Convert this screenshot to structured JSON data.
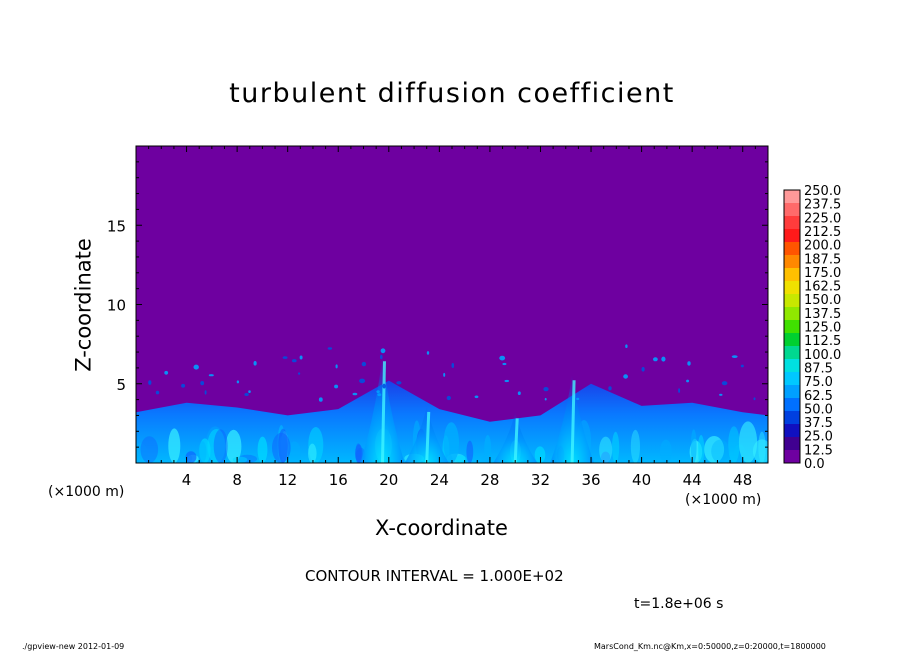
{
  "chart_data": {
    "type": "heatmap",
    "title": "turbulent diffusion coefficient",
    "xlabel": "X-coordinate",
    "ylabel": "Z-coordinate",
    "x_unit_label": "(×1000 m)",
    "x_unit_label_right": "(×1000 m)",
    "xlim": [
      0,
      50
    ],
    "ylim": [
      0,
      20
    ],
    "x_ticks": [
      4,
      8,
      12,
      16,
      20,
      24,
      28,
      32,
      36,
      40,
      44,
      48
    ],
    "y_ticks": [
      5,
      10,
      15
    ],
    "colorbar": {
      "levels": [
        "250.0",
        "237.5",
        "225.0",
        "212.5",
        "200.0",
        "187.5",
        "175.0",
        "162.5",
        "150.0",
        "137.5",
        "125.0",
        "112.5",
        "100.0",
        "87.5",
        "75.0",
        "62.5",
        "50.0",
        "37.5",
        "25.0",
        "12.5",
        "0.0"
      ],
      "colors": [
        "#ff9999",
        "#ff6a6a",
        "#ff3c3c",
        "#ff1a1a",
        "#ff5500",
        "#ff8800",
        "#ffc000",
        "#f0e000",
        "#c8e800",
        "#90e800",
        "#40e000",
        "#00d030",
        "#00d890",
        "#00e0e0",
        "#00c8ff",
        "#00a0ff",
        "#0070ff",
        "#0040e0",
        "#1010c0",
        "#400090",
        "#6e00a0"
      ]
    },
    "background_level": "0.0",
    "field": {
      "description_levels": "mostly 0–12.5 above ~4 km; 12.5–87.5 in the boundary layer below ~4 km",
      "boundary_layer_top": [
        [
          0,
          3.2
        ],
        [
          4,
          3.8
        ],
        [
          8,
          3.5
        ],
        [
          12,
          3.0
        ],
        [
          16,
          3.4
        ],
        [
          20,
          5.2
        ],
        [
          24,
          3.4
        ],
        [
          28,
          2.6
        ],
        [
          32,
          3.0
        ],
        [
          36,
          5.0
        ],
        [
          40,
          3.6
        ],
        [
          44,
          3.8
        ],
        [
          48,
          3.2
        ],
        [
          50,
          3.0
        ]
      ],
      "plumes": [
        {
          "x": 19.5,
          "top": 6.8,
          "peak": "75.0"
        },
        {
          "x": 34.5,
          "top": 5.6,
          "peak": "75.0"
        },
        {
          "x": 23.0,
          "top": 3.6,
          "peak": "62.5"
        },
        {
          "x": 30.0,
          "top": 3.2,
          "peak": "62.5"
        }
      ]
    }
  },
  "contour_interval": "CONTOUR INTERVAL = 1.000E+02",
  "time_label": "t=1.8e+06 s",
  "footer_left": "./gpview-new   2012-01-09",
  "footer_right": "MarsCond_Km.nc@Km,x=0:50000,z=0:20000,t=1800000"
}
